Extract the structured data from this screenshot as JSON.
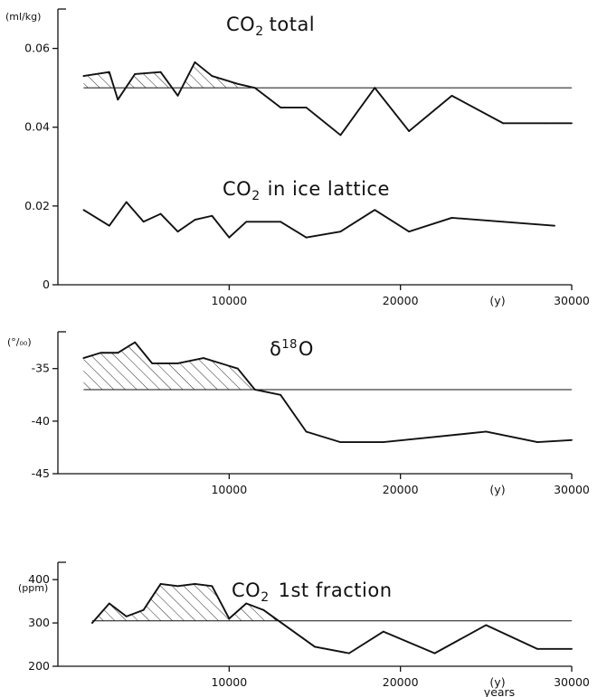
{
  "chart_data": [
    {
      "type": "line",
      "title": "CO2 total",
      "title_main": "CO",
      "title_sub": "2",
      "title_rest": "total",
      "ylabel": "(ml/kg)",
      "xlabel": "",
      "xlim": [
        0,
        30000
      ],
      "ylim": [
        0,
        0.07
      ],
      "yticks": [
        "0",
        "0.02",
        "0.04",
        "0.06"
      ],
      "ytick_values": [
        0,
        0.02,
        0.04,
        0.06
      ],
      "xticks": [
        "10000",
        "20000",
        "30000"
      ],
      "xtick_values": [
        10000,
        20000,
        30000
      ],
      "x_unit_label": "(y)",
      "reference_line": 0.05,
      "hatched_above_reference": true,
      "x": [
        1500,
        3000,
        3500,
        4500,
        6000,
        7000,
        8000,
        9000,
        10500,
        11500,
        13000,
        14500,
        16500,
        18500,
        20500,
        23000,
        26000,
        28500,
        30000
      ],
      "values": [
        0.053,
        0.054,
        0.047,
        0.0535,
        0.054,
        0.048,
        0.0565,
        0.053,
        0.051,
        0.05,
        0.045,
        0.045,
        0.038,
        0.05,
        0.039,
        0.048,
        0.041,
        0.041,
        0.041
      ]
    },
    {
      "type": "line",
      "title": "CO2 in ice lattice",
      "title_main": "CO",
      "title_sub": "2",
      "title_rest": "in ice lattice",
      "ylabel": "",
      "xlim": [
        0,
        30000
      ],
      "ylim": [
        0,
        0.07
      ],
      "reference_line": null,
      "x": [
        1500,
        3000,
        4000,
        5000,
        6000,
        7000,
        8000,
        9000,
        10000,
        11000,
        13000,
        14500,
        16500,
        18500,
        20500,
        23000,
        26000,
        29000
      ],
      "values": [
        0.019,
        0.015,
        0.021,
        0.016,
        0.018,
        0.0135,
        0.0165,
        0.0175,
        0.012,
        0.016,
        0.016,
        0.012,
        0.0135,
        0.019,
        0.0135,
        0.017,
        0.016,
        0.015
      ]
    },
    {
      "type": "line",
      "title": "δ18O",
      "title_main": "δ",
      "title_sup": "18",
      "title_rest": "O",
      "ylabel": "(°/₀₀)",
      "xlim": [
        0,
        30000
      ],
      "ylim": [
        -45,
        -31.5
      ],
      "yticks": [
        "-35",
        "-40",
        "-45"
      ],
      "ytick_values": [
        -35,
        -40,
        -45
      ],
      "xticks": [
        "10000",
        "20000",
        "30000"
      ],
      "xtick_values": [
        10000,
        20000,
        30000
      ],
      "x_unit_label": "(y)",
      "reference_line": -37.0,
      "hatched_above_reference": true,
      "x": [
        1500,
        2500,
        3500,
        4500,
        5500,
        7000,
        8500,
        9500,
        10500,
        11500,
        13000,
        14500,
        16500,
        19000,
        22000,
        25000,
        28000,
        30000
      ],
      "values": [
        -34.0,
        -33.5,
        -33.5,
        -32.5,
        -34.5,
        -34.5,
        -34.0,
        -34.5,
        -35.0,
        -37.0,
        -37.5,
        -41.0,
        -42.0,
        -42.0,
        -41.5,
        -41.0,
        -42.0,
        -41.8
      ]
    },
    {
      "type": "line",
      "title": "CO2 1st fraction",
      "title_main": "CO",
      "title_sub": "2",
      "title_rest": "1st fraction",
      "ylabel": "(ppm)",
      "xlim": [
        0,
        30000
      ],
      "ylim": [
        200,
        440
      ],
      "yticks": [
        "200",
        "300",
        "400"
      ],
      "ytick_values": [
        200,
        300,
        400
      ],
      "xticks": [
        "10000",
        "20000",
        "30000"
      ],
      "xtick_values": [
        10000,
        20000,
        30000
      ],
      "x_unit_label": "(y)",
      "x_unit_word": "years",
      "reference_line": 305,
      "hatched_above_reference": true,
      "x": [
        2000,
        3000,
        4000,
        5000,
        6000,
        7000,
        8000,
        9000,
        10000,
        11000,
        12000,
        15000,
        17000,
        19000,
        22000,
        25000,
        28000,
        30000
      ],
      "values": [
        300,
        345,
        315,
        330,
        390,
        385,
        390,
        385,
        310,
        345,
        330,
        245,
        230,
        280,
        230,
        295,
        240,
        240
      ]
    }
  ]
}
